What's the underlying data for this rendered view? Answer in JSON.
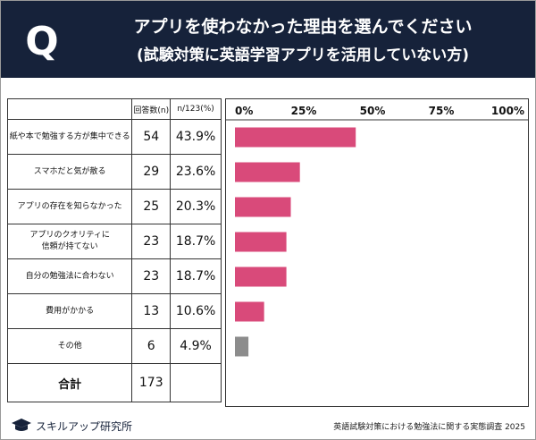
{
  "header": {
    "badge": "Q",
    "title_line1": "アプリを使わなかった理由を選んでください",
    "title_line2": "(試験対策に英語学習アプリを活用していない方)"
  },
  "table": {
    "col_n": "回答数(n)",
    "col_pct": "n/123(%)",
    "rows": [
      {
        "label": "紙や本で勉強する方が集中できる",
        "n": "54",
        "pct": "43.9%"
      },
      {
        "label": "スマホだと気が散る",
        "n": "29",
        "pct": "23.6%"
      },
      {
        "label": "アプリの存在を知らなかった",
        "n": "25",
        "pct": "20.3%"
      },
      {
        "label": "アプリのクオリティに\n信頼が持てない",
        "n": "23",
        "pct": "18.7%"
      },
      {
        "label": "自分の勉強法に合わない",
        "n": "23",
        "pct": "18.7%"
      },
      {
        "label": "費用がかかる",
        "n": "13",
        "pct": "10.6%"
      },
      {
        "label": "その他",
        "n": "6",
        "pct": "4.9%"
      }
    ],
    "total_label": "合計",
    "total_n": "173"
  },
  "chart_data": {
    "type": "bar",
    "orientation": "horizontal",
    "categories": [
      "紙や本で勉強する方が集中できる",
      "スマホだと気が散る",
      "アプリの存在を知らなかった",
      "アプリのクオリティに信頼が持てない",
      "自分の勉強法に合わない",
      "費用がかかる",
      "その他"
    ],
    "values": [
      43.9,
      23.6,
      20.3,
      18.7,
      18.7,
      10.6,
      4.9
    ],
    "xlim": [
      0,
      100
    ],
    "ticks": [
      "0%",
      "25%",
      "50%",
      "75%",
      "100%"
    ],
    "bar_color": "#d94a7a",
    "other_color": "#8c8c8c"
  },
  "footer": {
    "logo_text": "スキルアップ研究所",
    "source": "英語試験対策における勉強法に関する実態調査 2025"
  }
}
